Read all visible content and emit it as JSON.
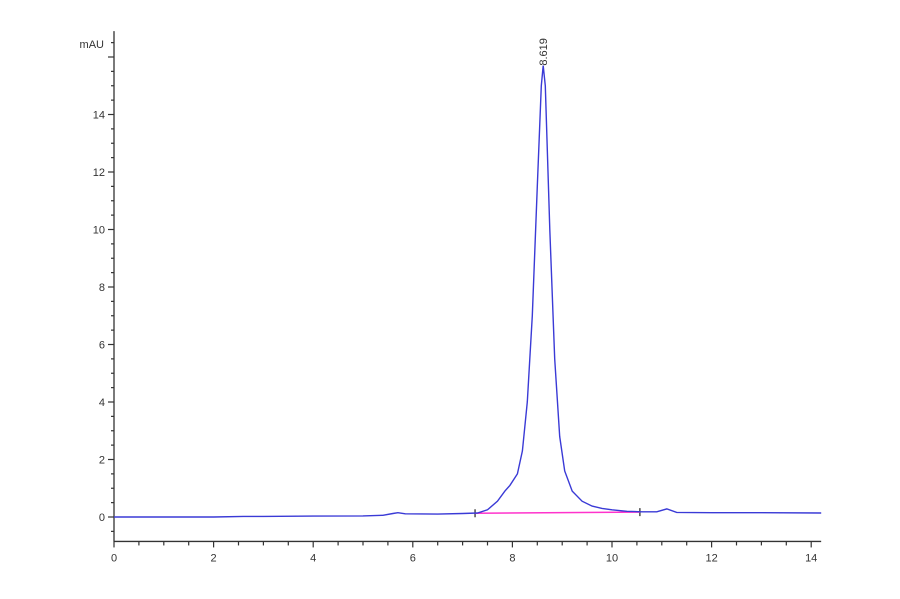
{
  "chart_data": {
    "type": "line",
    "title": "",
    "xlabel": "",
    "ylabel": "mAU",
    "xlim": [
      0,
      14.2
    ],
    "ylim": [
      -0.85,
      16.9
    ],
    "x_ticks": [
      0,
      2,
      4,
      6,
      8,
      10,
      12,
      14
    ],
    "y_ticks": [
      0,
      2,
      4,
      6,
      8,
      10,
      12,
      14
    ],
    "x_minor_step": 0.5,
    "y_minor_step": 0.5,
    "grid": false,
    "colors": {
      "signal": "#3a3ad6",
      "baseline": "#ff33cc",
      "axis": "#333333"
    },
    "series": [
      {
        "points": [
          [
            0,
            0
          ],
          [
            1,
            0
          ],
          [
            2,
            0
          ],
          [
            2.6,
            0.02
          ],
          [
            3,
            0.02
          ],
          [
            4,
            0.03
          ],
          [
            5,
            0.04
          ],
          [
            5.4,
            0.06
          ],
          [
            5.6,
            0.12
          ],
          [
            5.7,
            0.15
          ],
          [
            5.85,
            0.11
          ],
          [
            6.5,
            0.1
          ],
          [
            7,
            0.12
          ],
          [
            7.3,
            0.14
          ],
          [
            7.5,
            0.25
          ],
          [
            7.7,
            0.55
          ],
          [
            7.85,
            0.9
          ],
          [
            7.95,
            1.1
          ],
          [
            8.1,
            1.5
          ],
          [
            8.2,
            2.3
          ],
          [
            8.3,
            4.0
          ],
          [
            8.4,
            7.0
          ],
          [
            8.5,
            11.5
          ],
          [
            8.58,
            15.0
          ],
          [
            8.619,
            15.7
          ],
          [
            8.66,
            15.0
          ],
          [
            8.75,
            10.0
          ],
          [
            8.85,
            5.5
          ],
          [
            8.95,
            2.8
          ],
          [
            9.05,
            1.6
          ],
          [
            9.2,
            0.9
          ],
          [
            9.4,
            0.55
          ],
          [
            9.6,
            0.38
          ],
          [
            9.8,
            0.3
          ],
          [
            10,
            0.25
          ],
          [
            10.3,
            0.2
          ],
          [
            10.6,
            0.18
          ],
          [
            10.9,
            0.18
          ],
          [
            11.1,
            0.28
          ],
          [
            11.3,
            0.16
          ],
          [
            12,
            0.15
          ],
          [
            13,
            0.15
          ],
          [
            14.2,
            0.14
          ]
        ]
      }
    ],
    "baseline": [
      [
        7.25,
        0.13
      ],
      [
        10.56,
        0.17
      ]
    ],
    "peaks": [
      {
        "time": 8.619,
        "height": 15.7,
        "label": "8.619"
      }
    ]
  }
}
